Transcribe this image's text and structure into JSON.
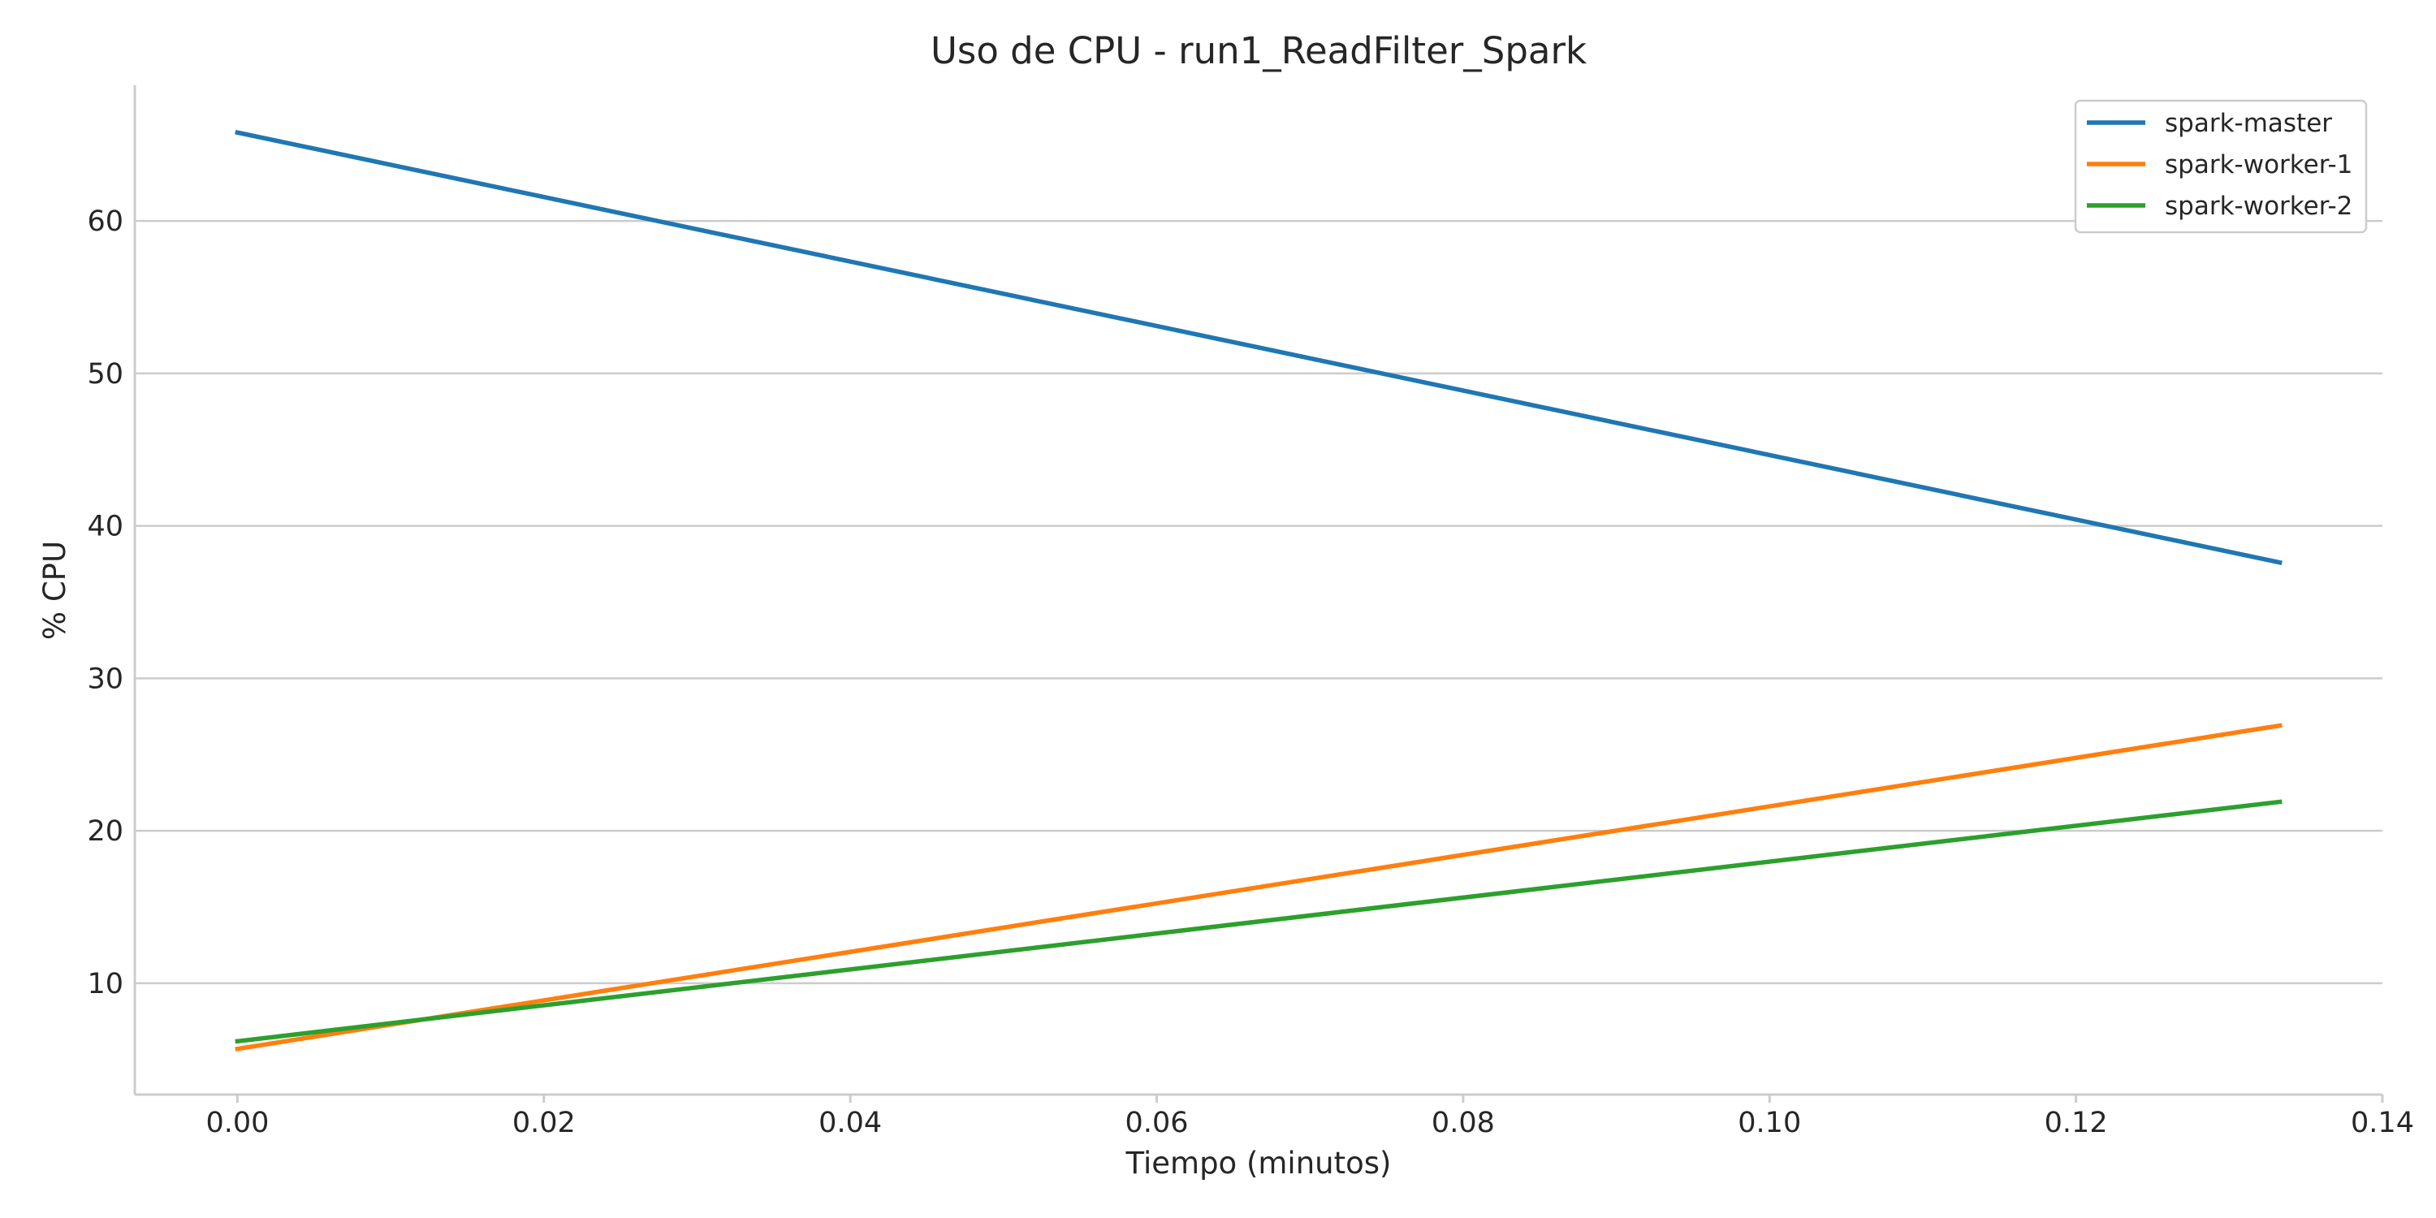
{
  "chart_data": {
    "type": "line",
    "title": "Uso de CPU - run1_ReadFilter_Spark",
    "xlabel": "Tiempo (minutos)",
    "ylabel": "% CPU",
    "xlim": [
      -0.0067,
      0.14
    ],
    "ylim": [
      2.7,
      68.9
    ],
    "xticks": [
      0.0,
      0.02,
      0.04,
      0.06,
      0.08,
      0.1,
      0.12,
      0.14
    ],
    "xtick_labels": [
      "0.00",
      "0.02",
      "0.04",
      "0.06",
      "0.08",
      "0.10",
      "0.12",
      "0.14"
    ],
    "yticks": [
      10,
      20,
      30,
      40,
      50,
      60
    ],
    "ytick_labels": [
      "10",
      "20",
      "30",
      "40",
      "50",
      "60"
    ],
    "grid": "horizontal",
    "legend_position": "top-right",
    "x": [
      0.0,
      0.1333
    ],
    "series": [
      {
        "name": "spark-master",
        "color": "#1f77b4",
        "values": [
          65.8,
          37.6
        ]
      },
      {
        "name": "spark-worker-1",
        "color": "#ff7f0e",
        "values": [
          5.7,
          26.9
        ]
      },
      {
        "name": "spark-worker-2",
        "color": "#2ca02c",
        "values": [
          6.2,
          21.9
        ]
      }
    ]
  }
}
